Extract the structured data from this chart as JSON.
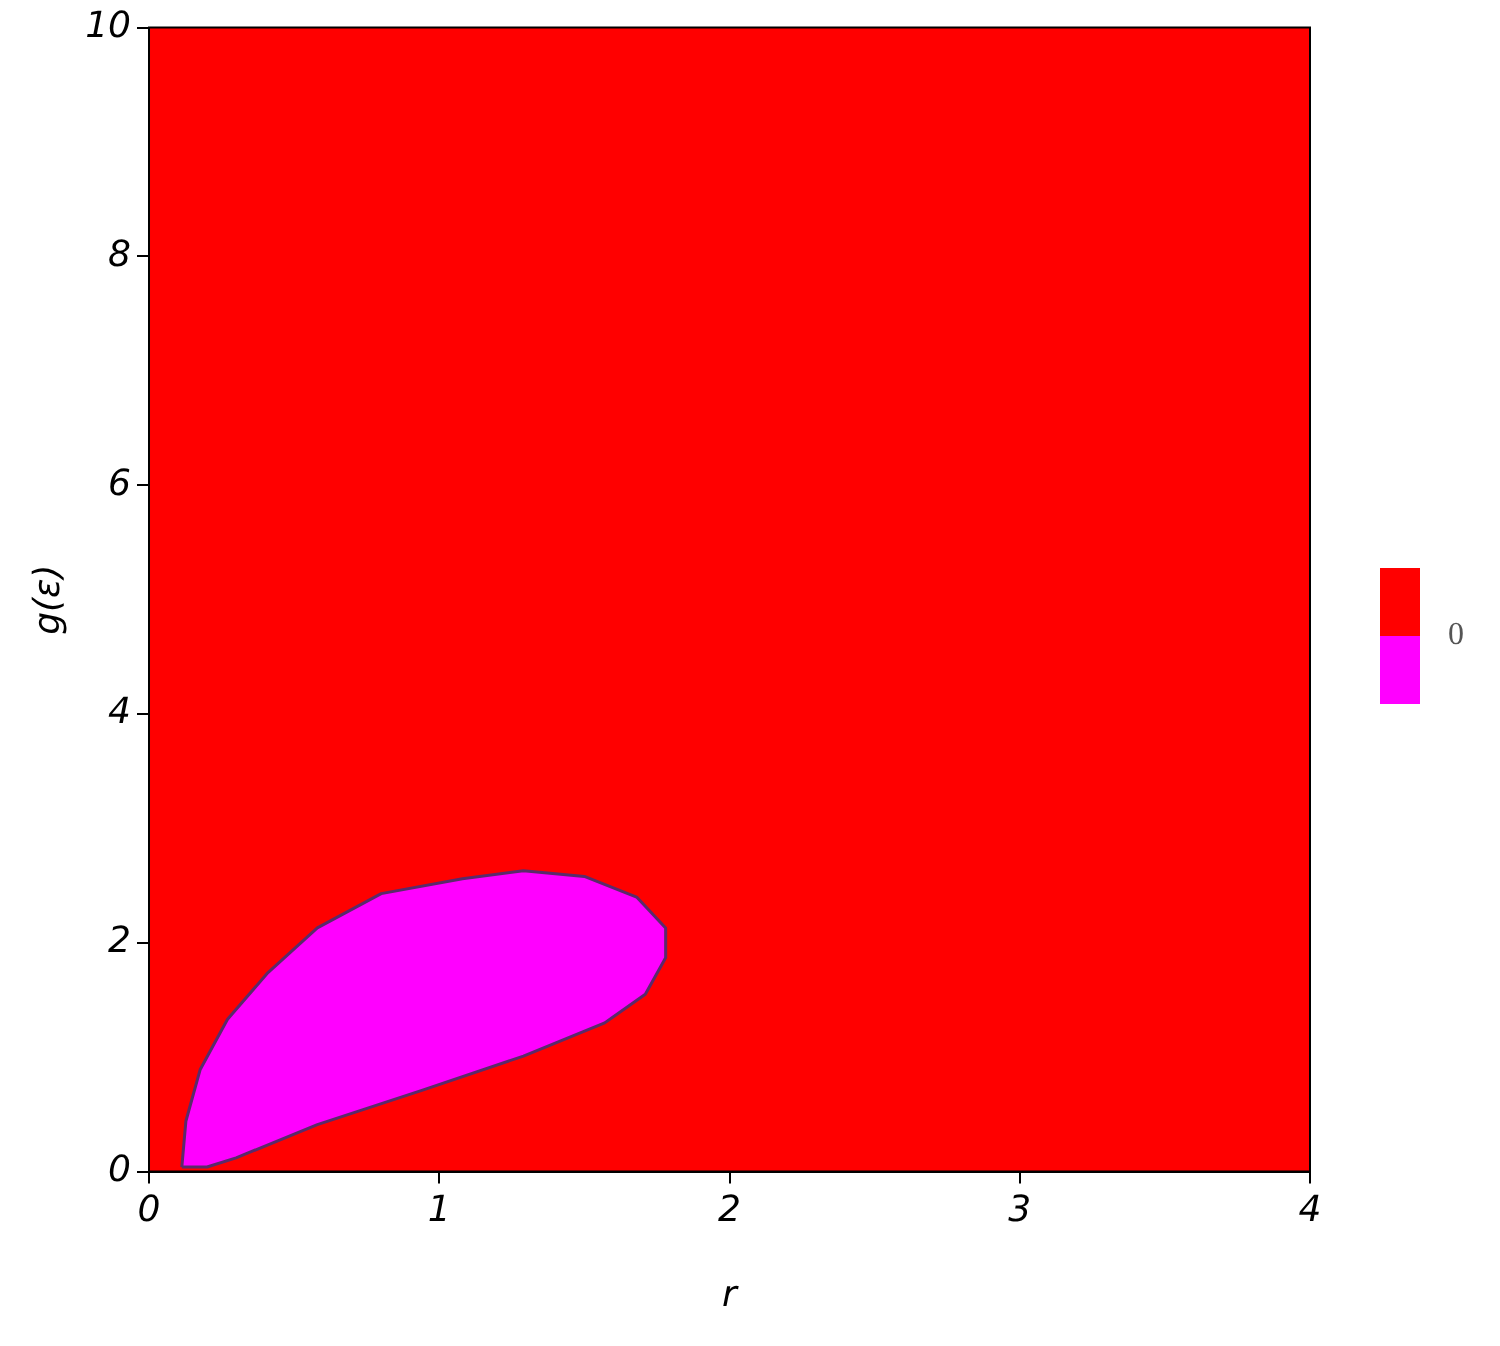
{
  "chart_data": {
    "type": "area",
    "xlabel": "r",
    "ylabel": "g(ε)",
    "xlim": [
      0,
      4
    ],
    "xticks": [
      0,
      1,
      2,
      3,
      4
    ],
    "ylim": [
      0,
      10
    ],
    "yticks": [
      0,
      2,
      4,
      6,
      8,
      10
    ],
    "legend": false,
    "marker": "none",
    "line_style": "solid",
    "bands": [
      {
        "axis": "y",
        "from": 0,
        "to": 10,
        "color": "#ff0000"
      }
    ],
    "series": [
      {
        "color": "#ff00ff",
        "x": [
          0.113,
          0.127,
          0.176,
          0.27,
          0.41,
          0.58,
          0.8,
          1.08,
          1.29,
          1.5,
          1.68,
          1.78,
          1.78,
          1.71,
          1.57,
          1.29,
          0.94,
          0.58,
          0.3,
          0.2,
          0.113
        ],
        "values": [
          0.04,
          0.44,
          0.89,
          1.33,
          1.74,
          2.13,
          2.43,
          2.56,
          2.63,
          2.58,
          2.4,
          2.13,
          1.87,
          1.55,
          1.3,
          1.01,
          0.71,
          0.41,
          0.12,
          0.04,
          0.04
        ]
      }
    ],
    "annotations": [
      "0"
    ]
  }
}
